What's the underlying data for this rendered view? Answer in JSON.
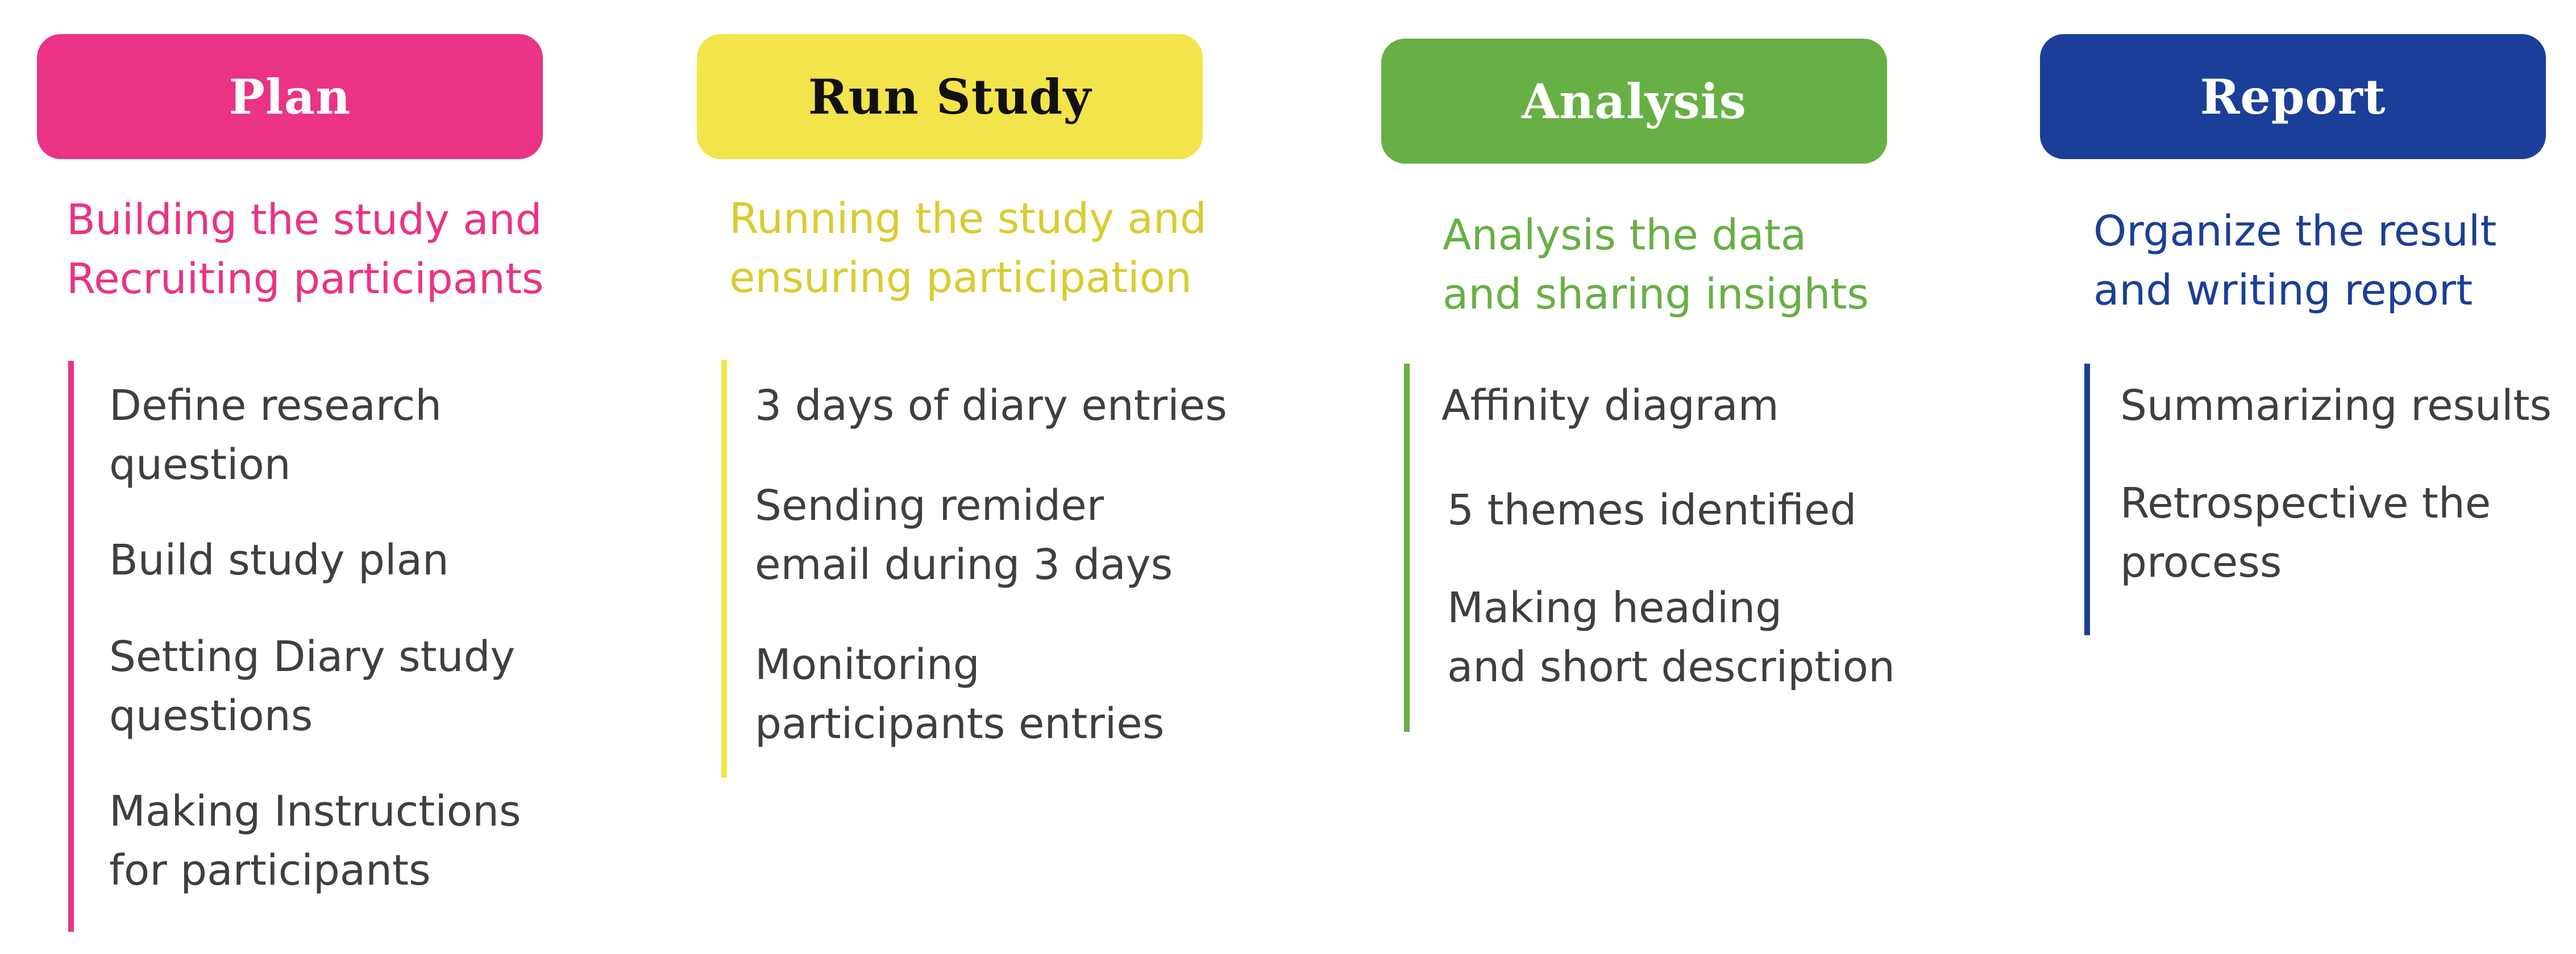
{
  "stages": [
    {
      "title": "Plan",
      "subtitle": [
        "Building the study and",
        "Recruiting participants"
      ],
      "color": "#ea3385",
      "title_color": "#ffffff",
      "items": [
        [
          "Define research",
          "question"
        ],
        [
          "Build study plan"
        ],
        [
          "Setting Diary study",
          "questions"
        ],
        [
          "Making Instructions",
          "for participants"
        ]
      ]
    },
    {
      "title": "Run Study",
      "subtitle": [
        "Running the study and",
        "ensuring participation"
      ],
      "color": "#f2e44a",
      "subtitle_color": "#d9cc2f",
      "title_color": "#111111",
      "items": [
        [
          "3 days of diary entries"
        ],
        [
          "Sending remider",
          "email during 3 days"
        ],
        [
          "Monitoring",
          "participants entries"
        ]
      ]
    },
    {
      "title": "Analysis",
      "subtitle": [
        "Analysis the data",
        "and sharing insights"
      ],
      "color": "#67b045",
      "title_color": "#ffffff",
      "items": [
        [
          "Affinity diagram"
        ],
        [
          "5 themes identified"
        ],
        [
          "Making heading",
          "and short description"
        ]
      ]
    },
    {
      "title": "Report",
      "subtitle": [
        "Organize the result",
        "and writing report"
      ],
      "color": "#1b3f98",
      "title_color": "#ffffff",
      "items": [
        [
          "Summarizing results"
        ],
        [
          "Retrospective the",
          "process"
        ]
      ]
    }
  ]
}
